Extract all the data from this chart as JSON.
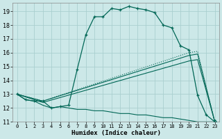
{
  "xlabel": "Humidex (Indice chaleur)",
  "bg_color": "#cce8e8",
  "grid_color": "#aacfcf",
  "line_color": "#006655",
  "xlim": [
    -0.5,
    23.5
  ],
  "ylim": [
    11,
    19.6
  ],
  "yticks": [
    11,
    12,
    13,
    14,
    15,
    16,
    17,
    18,
    19
  ],
  "xticks": [
    0,
    1,
    2,
    3,
    4,
    5,
    6,
    7,
    8,
    9,
    10,
    11,
    12,
    13,
    14,
    15,
    16,
    17,
    18,
    19,
    20,
    21,
    22,
    23
  ],
  "series_main_x": [
    0,
    1,
    2,
    3,
    4,
    5,
    6,
    7,
    8,
    9,
    10,
    11,
    12,
    13,
    14,
    15,
    16,
    17,
    18,
    19,
    20,
    21,
    22,
    23
  ],
  "series_main_y": [
    13.0,
    12.6,
    12.5,
    12.5,
    12.0,
    12.1,
    12.2,
    14.8,
    17.3,
    18.6,
    18.6,
    19.2,
    19.1,
    19.35,
    19.2,
    19.1,
    18.9,
    18.0,
    17.8,
    16.5,
    16.2,
    12.9,
    11.5,
    11.0
  ],
  "series_main_markers": [
    0,
    1,
    2,
    3,
    4,
    5,
    6,
    7,
    8,
    9,
    10,
    11,
    12,
    13,
    14,
    15,
    16,
    17,
    18,
    19,
    20,
    21,
    22,
    23
  ],
  "series_main_markers_y": [
    13.0,
    12.6,
    12.5,
    12.5,
    12.0,
    12.1,
    12.2,
    14.8,
    17.3,
    18.6,
    18.6,
    19.2,
    19.1,
    19.35,
    19.2,
    19.1,
    18.9,
    18.0,
    17.8,
    16.5,
    16.2,
    12.9,
    11.5,
    11.0
  ],
  "series_dotted_x": [
    0,
    3,
    20,
    21,
    23
  ],
  "series_dotted_y": [
    13.0,
    12.5,
    16.0,
    16.1,
    11.0
  ],
  "series_upper_diag_x": [
    0,
    3,
    20,
    21,
    23
  ],
  "series_upper_diag_y": [
    13.0,
    12.5,
    15.8,
    15.9,
    11.0
  ],
  "series_lower_diag_x": [
    0,
    3,
    20,
    21,
    23
  ],
  "series_lower_diag_y": [
    13.0,
    12.4,
    15.4,
    15.5,
    11.0
  ],
  "series_flat_x": [
    0,
    1,
    2,
    3,
    4,
    5,
    6,
    7,
    8,
    9,
    10,
    11,
    12,
    13,
    14,
    15,
    16,
    17,
    18,
    19,
    20,
    21,
    22,
    23
  ],
  "series_flat_y": [
    13.0,
    12.6,
    12.5,
    12.2,
    12.0,
    12.1,
    12.0,
    11.9,
    11.9,
    11.8,
    11.8,
    11.7,
    11.6,
    11.6,
    11.5,
    11.5,
    11.4,
    11.3,
    11.3,
    11.2,
    11.1,
    11.0,
    11.0,
    11.0
  ]
}
